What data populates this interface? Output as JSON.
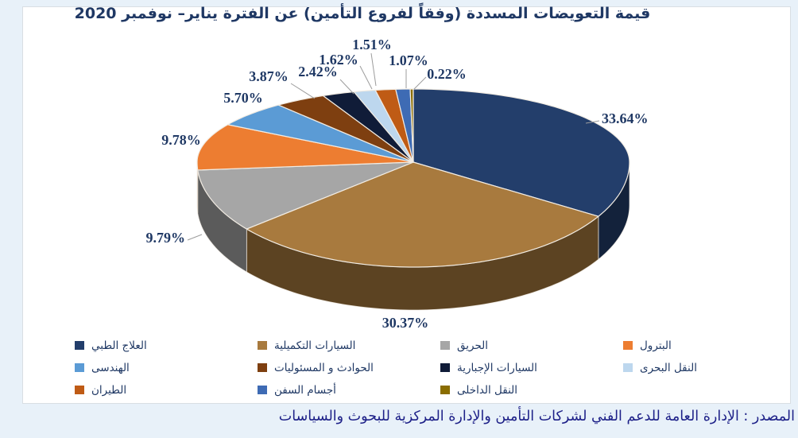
{
  "page": {
    "background_color": "#e8f1f9",
    "panel_color": "#ffffff"
  },
  "header": {
    "title": "قيمة التعويضات المسددة (وفقاً لفروع التأمين) عن الفترة يناير– نوفمبر 2020",
    "title_color": "#1f3864"
  },
  "footer": {
    "source": "المصدر : الإدارة العامة للدعم الفني لشركات التأمين والإدارة المركزية للبحوث والسياسات",
    "source_color": "#1d2088"
  },
  "chart_data": {
    "type": "pie",
    "title": "قيمة التعويضات المسددة (وفقاً لفروع التأمين) عن الفترة يناير– نوفمبر 2020",
    "style": "3d-pie",
    "start_angle_deg": 0,
    "direction": "clockwise",
    "legend_position": "bottom",
    "label_format": "percent",
    "slices": [
      {
        "label": "العلاج الطبي",
        "value_pct": 33.64,
        "color": "#233e6b"
      },
      {
        "label": "السيارات التكميلية",
        "value_pct": 30.37,
        "color": "#a87a3e"
      },
      {
        "label": "الحريق",
        "value_pct": 9.79,
        "color": "#a6a6a6"
      },
      {
        "label": "البترول",
        "value_pct": 9.78,
        "color": "#ed7d31"
      },
      {
        "label": "الهندسى",
        "value_pct": 5.7,
        "color": "#5b9bd5"
      },
      {
        "label": "الحوادث و المسئوليات",
        "value_pct": 3.87,
        "color": "#7e3f10"
      },
      {
        "label": "السيارات الإجبارية",
        "value_pct": 2.42,
        "color": "#101c38"
      },
      {
        "label": "النقل البحرى",
        "value_pct": 1.62,
        "color": "#bdd7ee"
      },
      {
        "label": "الطيران",
        "value_pct": 1.51,
        "color": "#bf5b15"
      },
      {
        "label": "أجسام السفن",
        "value_pct": 1.07,
        "color": "#3e6bb4"
      },
      {
        "label": "النقل الداخلى",
        "value_pct": 0.22,
        "color": "#8a6d00"
      }
    ],
    "legend_rows": [
      [
        0,
        1,
        2,
        3
      ],
      [
        4,
        5,
        6,
        7
      ],
      [
        8,
        9,
        10
      ]
    ]
  }
}
